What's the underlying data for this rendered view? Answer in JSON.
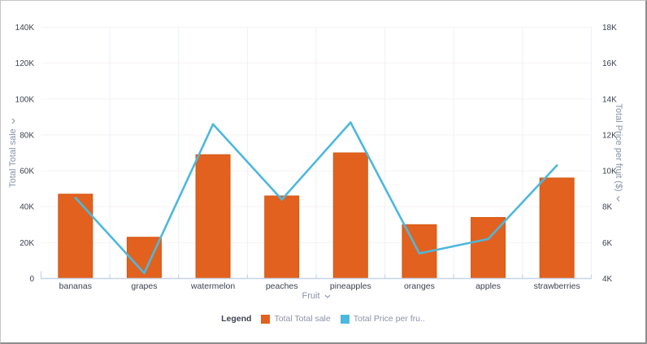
{
  "chart_data": {
    "type": "bar",
    "subtype": "column-with-line-overlay",
    "title": "",
    "categories": [
      "bananas",
      "grapes",
      "watermelon",
      "peaches",
      "pineapples",
      "oranges",
      "apples",
      "strawberries"
    ],
    "series": [
      {
        "name": "Total Total sale",
        "type": "bar",
        "axis": "left",
        "color": "#e2611f",
        "border_color": "#d4570f",
        "values": [
          47000,
          23000,
          69000,
          46000,
          70000,
          30000,
          34000,
          56000
        ]
      },
      {
        "name": "Total Price per fruit ($)",
        "type": "line",
        "axis": "right",
        "color": "#4db8dd",
        "values": [
          8500,
          4300,
          12600,
          8400,
          12700,
          5400,
          6200,
          10300
        ]
      }
    ],
    "x_axis": {
      "label": "Fruit"
    },
    "left_axis": {
      "label": "Total Total sale",
      "min": 0,
      "max": 140000,
      "tick_interval": 20000,
      "tick_labels": [
        "0",
        "20K",
        "40K",
        "60K",
        "80K",
        "100K",
        "120K",
        "140K"
      ]
    },
    "right_axis": {
      "label": "Total Price per fruit ($)",
      "min": 4000,
      "max": 18000,
      "tick_interval": 2000,
      "tick_labels": [
        "4K",
        "6K",
        "8K",
        "10K",
        "12K",
        "14K",
        "16K",
        "18K"
      ]
    },
    "grid": "horizontal+vertical",
    "legend": {
      "position": "bottom",
      "title": "Legend",
      "items": [
        {
          "label": "Total Total sale",
          "color": "#e2611f"
        },
        {
          "label": "Total Price per fru..",
          "color": "#4db8dd"
        }
      ]
    },
    "style": {
      "h_gridline_color": "#f7f2f3",
      "v_gridline_color": "#edf1f7",
      "axis_line_color": "#c6d4e8",
      "tick_label_color": "#3c4250",
      "axis_title_color": "#8691a8"
    }
  }
}
